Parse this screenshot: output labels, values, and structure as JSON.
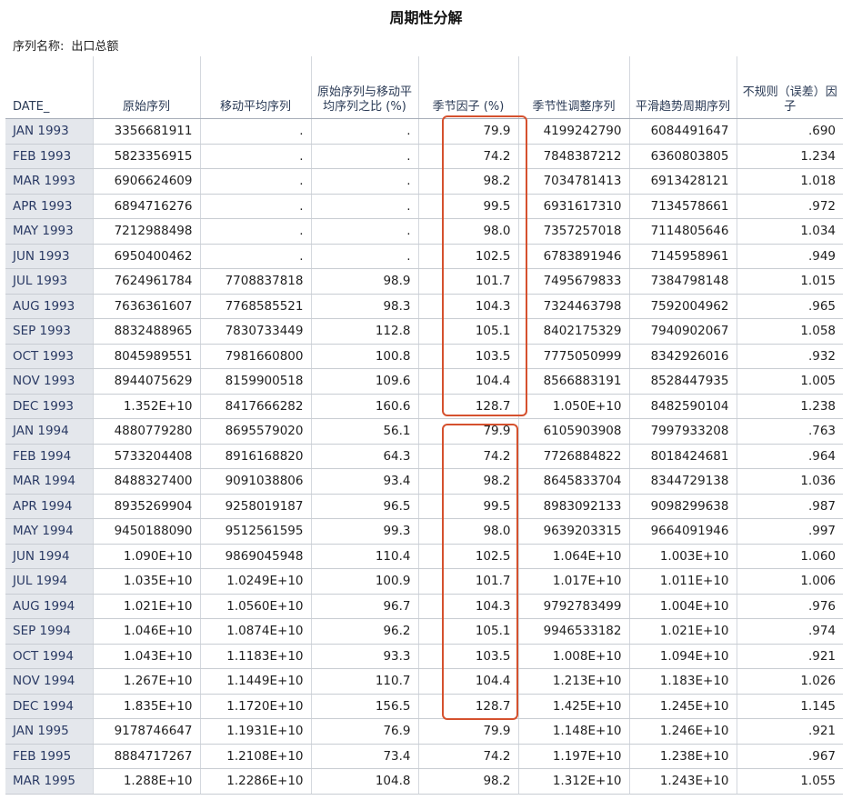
{
  "title": "周期性分解",
  "series_label": "序列名称:",
  "series_name": "出口总额",
  "headers": [
    "DATE_",
    "原始序列",
    "移动平均序列",
    "原始序列与移动平均序列之比 (%)",
    "季节因子 (%)",
    "季节性调整序列",
    "平滑趋势周期序列",
    "不规则（误差）因子"
  ],
  "rows": [
    [
      "JAN 1993",
      "3356681911",
      ".",
      ".",
      "79.9",
      "4199242790",
      "6084491647",
      ".690"
    ],
    [
      "FEB 1993",
      "5823356915",
      ".",
      ".",
      "74.2",
      "7848387212",
      "6360803805",
      "1.234"
    ],
    [
      "MAR 1993",
      "6906624609",
      ".",
      ".",
      "98.2",
      "7034781413",
      "6913428121",
      "1.018"
    ],
    [
      "APR 1993",
      "6894716276",
      ".",
      ".",
      "99.5",
      "6931617310",
      "7134578661",
      ".972"
    ],
    [
      "MAY 1993",
      "7212988498",
      ".",
      ".",
      "98.0",
      "7357257018",
      "7114805646",
      "1.034"
    ],
    [
      "JUN 1993",
      "6950400462",
      ".",
      ".",
      "102.5",
      "6783891946",
      "7145958961",
      ".949"
    ],
    [
      "JUL 1993",
      "7624961784",
      "7708837818",
      "98.9",
      "101.7",
      "7495679833",
      "7384798148",
      "1.015"
    ],
    [
      "AUG 1993",
      "7636361607",
      "7768585521",
      "98.3",
      "104.3",
      "7324463798",
      "7592004962",
      ".965"
    ],
    [
      "SEP 1993",
      "8832488965",
      "7830733449",
      "112.8",
      "105.1",
      "8402175329",
      "7940902067",
      "1.058"
    ],
    [
      "OCT 1993",
      "8045989551",
      "7981660800",
      "100.8",
      "103.5",
      "7775050999",
      "8342926016",
      ".932"
    ],
    [
      "NOV 1993",
      "8944075629",
      "8159900518",
      "109.6",
      "104.4",
      "8566883191",
      "8528447935",
      "1.005"
    ],
    [
      "DEC 1993",
      "1.352E+10",
      "8417666282",
      "160.6",
      "128.7",
      "1.050E+10",
      "8482590104",
      "1.238"
    ],
    [
      "JAN 1994",
      "4880779280",
      "8695579020",
      "56.1",
      "79.9",
      "6105903908",
      "7997933208",
      ".763"
    ],
    [
      "FEB 1994",
      "5733204408",
      "8916168820",
      "64.3",
      "74.2",
      "7726884822",
      "8018424681",
      ".964"
    ],
    [
      "MAR 1994",
      "8488327400",
      "9091038806",
      "93.4",
      "98.2",
      "8645833704",
      "8344729138",
      "1.036"
    ],
    [
      "APR 1994",
      "8935269904",
      "9258019187",
      "96.5",
      "99.5",
      "8983092133",
      "9098299638",
      ".987"
    ],
    [
      "MAY 1994",
      "9450188090",
      "9512561595",
      "99.3",
      "98.0",
      "9639203315",
      "9664091946",
      ".997"
    ],
    [
      "JUN 1994",
      "1.090E+10",
      "9869045948",
      "110.4",
      "102.5",
      "1.064E+10",
      "1.003E+10",
      "1.060"
    ],
    [
      "JUL 1994",
      "1.035E+10",
      "1.0249E+10",
      "100.9",
      "101.7",
      "1.017E+10",
      "1.011E+10",
      "1.006"
    ],
    [
      "AUG 1994",
      "1.021E+10",
      "1.0560E+10",
      "96.7",
      "104.3",
      "9792783499",
      "1.004E+10",
      ".976"
    ],
    [
      "SEP 1994",
      "1.046E+10",
      "1.0874E+10",
      "96.2",
      "105.1",
      "9946533182",
      "1.021E+10",
      ".974"
    ],
    [
      "OCT 1994",
      "1.043E+10",
      "1.1183E+10",
      "93.3",
      "103.5",
      "1.008E+10",
      "1.094E+10",
      ".921"
    ],
    [
      "NOV 1994",
      "1.267E+10",
      "1.1449E+10",
      "110.7",
      "104.4",
      "1.213E+10",
      "1.183E+10",
      "1.026"
    ],
    [
      "DEC 1994",
      "1.835E+10",
      "1.1720E+10",
      "156.5",
      "128.7",
      "1.425E+10",
      "1.245E+10",
      "1.145"
    ],
    [
      "JAN 1995",
      "9178746647",
      "1.1931E+10",
      "76.9",
      "79.9",
      "1.148E+10",
      "1.246E+10",
      ".921"
    ],
    [
      "FEB 1995",
      "8884717267",
      "1.2108E+10",
      "73.4",
      "74.2",
      "1.197E+10",
      "1.238E+10",
      ".967"
    ],
    [
      "MAR 1995",
      "1.288E+10",
      "1.2286E+10",
      "104.8",
      "98.2",
      "1.312E+10",
      "1.243E+10",
      "1.055"
    ]
  ],
  "highlight_color": "#d5512e"
}
